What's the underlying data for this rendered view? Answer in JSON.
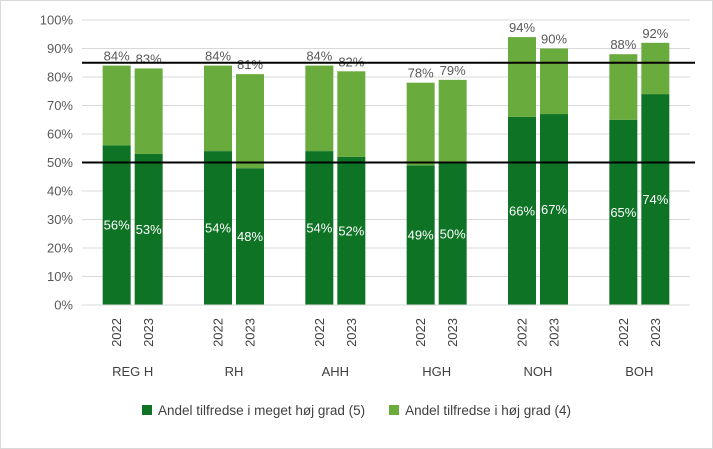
{
  "colors": {
    "dark_green": "#0f7326",
    "light_green": "#6aab3e",
    "grid": "#d9d9d9",
    "ref_line": "#000000"
  },
  "chart_data": {
    "type": "bar",
    "stacked": true,
    "title": "",
    "xlabel": "",
    "ylabel": "",
    "ylim": [
      0,
      100
    ],
    "y_ticks": [
      "0%",
      "10%",
      "20%",
      "30%",
      "40%",
      "50%",
      "60%",
      "70%",
      "80%",
      "90%",
      "100%"
    ],
    "grid": true,
    "legend_position": "bottom",
    "reference_lines": [
      50,
      85
    ],
    "groups": [
      "REG H",
      "RH",
      "AHH",
      "HGH",
      "NOH",
      "BOH"
    ],
    "years": [
      "2022",
      "2023"
    ],
    "series": [
      {
        "name": "Andel tilfredse i meget høj grad (5)",
        "values": [
          [
            56,
            53
          ],
          [
            54,
            48
          ],
          [
            54,
            52
          ],
          [
            49,
            50
          ],
          [
            66,
            67
          ],
          [
            65,
            74
          ]
        ],
        "labels": [
          [
            "56%",
            "53%"
          ],
          [
            "54%",
            "48%"
          ],
          [
            "54%",
            "52%"
          ],
          [
            "49%",
            "50%"
          ],
          [
            "66%",
            "67%"
          ],
          [
            "65%",
            "74%"
          ]
        ]
      },
      {
        "name": "Andel tilfredse i høj grad (4)",
        "values": [
          [
            28,
            30
          ],
          [
            30,
            33
          ],
          [
            30,
            30
          ],
          [
            29,
            29
          ],
          [
            28,
            23
          ],
          [
            23,
            18
          ]
        ]
      }
    ],
    "totals": [
      [
        84,
        83
      ],
      [
        84,
        81
      ],
      [
        84,
        82
      ],
      [
        78,
        79
      ],
      [
        94,
        90
      ],
      [
        88,
        92
      ]
    ],
    "total_labels": [
      [
        "84%",
        "83%"
      ],
      [
        "84%",
        "81%"
      ],
      [
        "84%",
        "82%"
      ],
      [
        "78%",
        "79%"
      ],
      [
        "94%",
        "90%"
      ],
      [
        "88%",
        "92%"
      ]
    ]
  }
}
